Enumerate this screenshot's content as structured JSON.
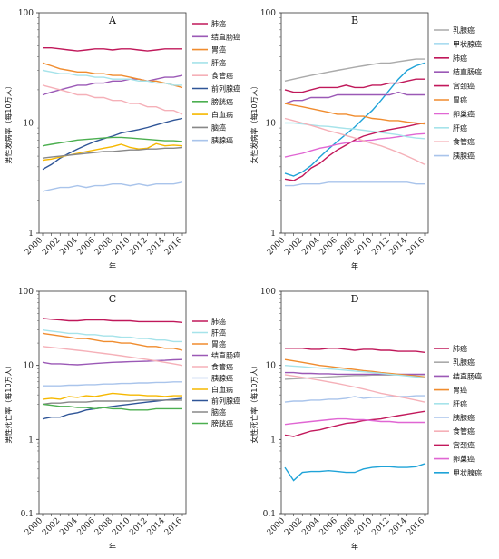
{
  "chart_data": [
    {
      "panel": "A",
      "type": "line",
      "title": "A",
      "xlabel": "年",
      "ylabel": "男性发病率（每10万人）",
      "yscale": "log",
      "ylim": [
        1,
        100
      ],
      "yticks": [
        "1",
        "10",
        "100"
      ],
      "x": [
        2000,
        2001,
        2002,
        2003,
        2004,
        2005,
        2006,
        2007,
        2008,
        2009,
        2010,
        2011,
        2012,
        2013,
        2014,
        2015,
        2016
      ],
      "xticks": [
        "2000",
        "2002",
        "2004",
        "2006",
        "2008",
        "2010",
        "2012",
        "2014",
        "2016"
      ],
      "series": [
        {
          "name": "肺癌",
          "color": "#c0185a",
          "values": [
            48,
            48,
            47,
            46,
            45,
            46,
            47,
            47,
            46,
            47,
            47,
            46,
            45,
            46,
            47,
            47,
            47
          ]
        },
        {
          "name": "结直肠癌",
          "color": "#9b59b6",
          "values": [
            18,
            19,
            20,
            21,
            22,
            22,
            23,
            23,
            24,
            24,
            25,
            25,
            24,
            25,
            26,
            26,
            27
          ]
        },
        {
          "name": "胃癌",
          "color": "#f08c2e",
          "values": [
            35,
            33,
            31,
            30,
            29,
            29,
            28,
            28,
            27,
            27,
            26,
            25,
            24,
            24,
            23,
            22,
            21
          ]
        },
        {
          "name": "肝癌",
          "color": "#a6e3ea",
          "values": [
            30,
            29,
            28,
            28,
            27,
            27,
            26,
            26,
            25,
            25,
            25,
            24,
            24,
            23,
            23,
            22,
            22
          ]
        },
        {
          "name": "食管癌",
          "color": "#f5b0b8",
          "values": [
            22,
            21,
            20,
            19,
            18,
            18,
            17,
            17,
            16,
            16,
            15,
            15,
            14,
            14,
            13,
            13,
            12
          ]
        },
        {
          "name": "前列腺癌",
          "color": "#2f5597",
          "values": [
            3.8,
            4.2,
            4.8,
            5.3,
            5.8,
            6.3,
            6.8,
            7.2,
            7.6,
            8.1,
            8.4,
            8.7,
            9.1,
            9.6,
            10.1,
            10.6,
            11.0
          ]
        },
        {
          "name": "膀胱癌",
          "color": "#4caf50",
          "values": [
            6.2,
            6.4,
            6.6,
            6.8,
            7.0,
            7.1,
            7.2,
            7.3,
            7.4,
            7.4,
            7.3,
            7.2,
            7.1,
            7.0,
            6.9,
            6.9,
            6.8
          ]
        },
        {
          "name": "白血病",
          "color": "#f6b800",
          "values": [
            4.6,
            4.7,
            4.9,
            5.1,
            5.3,
            5.5,
            5.7,
            5.9,
            6.1,
            6.4,
            6.0,
            5.8,
            5.9,
            6.5,
            6.2,
            6.3,
            6.2
          ]
        },
        {
          "name": "脑癌",
          "color": "#888888",
          "values": [
            4.8,
            4.9,
            5.0,
            5.1,
            5.2,
            5.3,
            5.4,
            5.5,
            5.5,
            5.6,
            5.7,
            5.7,
            5.8,
            5.8,
            5.9,
            5.9,
            6.0
          ]
        },
        {
          "name": "胰腺癌",
          "color": "#a9c4eb",
          "values": [
            2.4,
            2.5,
            2.6,
            2.6,
            2.7,
            2.6,
            2.7,
            2.7,
            2.8,
            2.8,
            2.7,
            2.8,
            2.7,
            2.8,
            2.8,
            2.8,
            2.9
          ]
        }
      ]
    },
    {
      "panel": "B",
      "type": "line",
      "title": "B",
      "xlabel": "年",
      "ylabel": "女性发病率（每10万人）",
      "yscale": "log",
      "ylim": [
        1,
        100
      ],
      "yticks": [
        "1",
        "10",
        "100"
      ],
      "x": [
        2000,
        2001,
        2002,
        2003,
        2004,
        2005,
        2006,
        2007,
        2008,
        2009,
        2010,
        2011,
        2012,
        2013,
        2014,
        2015,
        2016
      ],
      "xticks": [
        "2000",
        "2002",
        "2004",
        "2006",
        "2008",
        "2010",
        "2012",
        "2014",
        "2016"
      ],
      "series": [
        {
          "name": "乳腺癌",
          "color": "#aaaaaa",
          "values": [
            24,
            25,
            26,
            27,
            28,
            29,
            30,
            31,
            32,
            33,
            34,
            35,
            35,
            36,
            37,
            38,
            38
          ]
        },
        {
          "name": "甲状腺癌",
          "color": "#1fa3d8",
          "values": [
            3.5,
            3.3,
            3.6,
            4.1,
            4.9,
            5.8,
            6.8,
            7.9,
            9.2,
            11,
            13,
            16,
            20,
            25,
            30,
            33,
            35
          ]
        },
        {
          "name": "肺癌",
          "color": "#c0185a",
          "values": [
            20,
            19,
            19,
            20,
            21,
            21,
            21,
            22,
            21,
            21,
            22,
            22,
            23,
            23,
            24,
            25,
            25
          ]
        },
        {
          "name": "结直肠癌",
          "color": "#9b59b6",
          "values": [
            15,
            16,
            16,
            17,
            17,
            17,
            18,
            18,
            18,
            18,
            18,
            18,
            18,
            19,
            18,
            18,
            18
          ]
        },
        {
          "name": "宫颈癌",
          "color": "#c2185b",
          "values": [
            3.1,
            3.0,
            3.3,
            3.9,
            4.3,
            5.0,
            5.7,
            6.3,
            7.0,
            7.6,
            8.0,
            8.4,
            8.7,
            9.0,
            9.3,
            9.7,
            10.0
          ]
        },
        {
          "name": "胃癌",
          "color": "#f08c2e",
          "values": [
            15,
            14.5,
            14,
            13.5,
            13,
            12.5,
            12,
            12,
            11.5,
            11.5,
            11,
            10.8,
            10.5,
            10.5,
            10.2,
            10,
            9.8
          ]
        },
        {
          "name": "卵巢癌",
          "color": "#e066d3",
          "values": [
            4.9,
            5.1,
            5.3,
            5.6,
            5.9,
            6.1,
            6.4,
            6.6,
            6.8,
            6.9,
            7.0,
            7.2,
            7.3,
            7.5,
            7.7,
            7.9,
            8.0
          ]
        },
        {
          "name": "肝癌",
          "color": "#a6e3ea",
          "values": [
            10,
            10,
            9.8,
            9.6,
            9.4,
            9.3,
            9.1,
            8.9,
            8.8,
            8.6,
            8.4,
            8.2,
            8.0,
            7.8,
            7.5,
            7.3,
            7.2
          ]
        },
        {
          "name": "食管癌",
          "color": "#f5b0b8",
          "values": [
            11,
            10.5,
            10,
            9.5,
            9,
            8.5,
            8.1,
            7.7,
            7.3,
            6.9,
            6.5,
            6.2,
            5.8,
            5.4,
            5.0,
            4.6,
            4.2
          ]
        },
        {
          "name": "胰腺癌",
          "color": "#a9c4eb",
          "values": [
            2.7,
            2.7,
            2.8,
            2.8,
            2.8,
            2.9,
            2.9,
            2.9,
            2.9,
            2.9,
            2.9,
            2.9,
            2.9,
            2.9,
            2.9,
            2.8,
            2.8
          ]
        }
      ]
    },
    {
      "panel": "C",
      "type": "line",
      "title": "C",
      "xlabel": "年",
      "ylabel": "男性死亡率（每10万人）",
      "yscale": "log",
      "ylim": [
        0.1,
        100
      ],
      "yticks": [
        "0.1",
        "1",
        "10",
        "100"
      ],
      "x": [
        2000,
        2001,
        2002,
        2003,
        2004,
        2005,
        2006,
        2007,
        2008,
        2009,
        2010,
        2011,
        2012,
        2013,
        2014,
        2015,
        2016
      ],
      "xticks": [
        "2000",
        "2002",
        "2004",
        "2006",
        "2008",
        "2010",
        "2012",
        "2014",
        "2016"
      ],
      "series": [
        {
          "name": "肺癌",
          "color": "#c0185a",
          "values": [
            43,
            42,
            41,
            40,
            40,
            41,
            41,
            41,
            40,
            40,
            40,
            39,
            39,
            39,
            39,
            39,
            38
          ]
        },
        {
          "name": "肝癌",
          "color": "#a6e3ea",
          "values": [
            30,
            29,
            28,
            27,
            27,
            26,
            26,
            25,
            25,
            24,
            24,
            23,
            23,
            22,
            22,
            21,
            21
          ]
        },
        {
          "name": "胃癌",
          "color": "#f08c2e",
          "values": [
            27,
            26,
            25,
            24,
            23,
            23,
            22,
            21,
            21,
            20,
            20,
            19,
            18,
            18,
            17,
            17,
            16
          ]
        },
        {
          "name": "结直肠癌",
          "color": "#9b59b6",
          "values": [
            11,
            10.5,
            10.5,
            10.3,
            10.2,
            10.4,
            10.6,
            10.8,
            11,
            11.1,
            11.2,
            11.3,
            11.4,
            11.6,
            11.7,
            11.9,
            12
          ]
        },
        {
          "name": "食管癌",
          "color": "#f5b0b8",
          "values": [
            18,
            17.5,
            17,
            16.5,
            16,
            15.5,
            15,
            14.5,
            14,
            13.5,
            13,
            12.5,
            12,
            11.5,
            11,
            10.5,
            10
          ]
        },
        {
          "name": "胰腺癌",
          "color": "#a9c4eb",
          "values": [
            5.3,
            5.3,
            5.3,
            5.4,
            5.4,
            5.5,
            5.5,
            5.6,
            5.6,
            5.7,
            5.7,
            5.8,
            5.8,
            5.9,
            5.9,
            6.0,
            6.0
          ]
        },
        {
          "name": "白血病",
          "color": "#f6b800",
          "values": [
            3.5,
            3.6,
            3.5,
            3.8,
            3.7,
            3.9,
            3.8,
            4.0,
            4.2,
            4.1,
            4.0,
            4.0,
            3.9,
            3.9,
            3.8,
            3.9,
            3.9
          ]
        },
        {
          "name": "前列腺癌",
          "color": "#2f5597",
          "values": [
            1.9,
            2.0,
            2.0,
            2.2,
            2.3,
            2.5,
            2.6,
            2.7,
            2.8,
            2.9,
            3.0,
            3.1,
            3.2,
            3.3,
            3.4,
            3.5,
            3.6
          ]
        },
        {
          "name": "脑癌",
          "color": "#888888",
          "values": [
            3.0,
            3.1,
            3.1,
            3.2,
            3.2,
            3.2,
            3.3,
            3.3,
            3.3,
            3.3,
            3.3,
            3.4,
            3.4,
            3.4,
            3.4,
            3.4,
            3.4
          ]
        },
        {
          "name": "膀胱癌",
          "color": "#4caf50",
          "values": [
            3.0,
            2.9,
            2.8,
            2.8,
            2.7,
            2.7,
            2.6,
            2.7,
            2.6,
            2.6,
            2.5,
            2.5,
            2.5,
            2.6,
            2.6,
            2.6,
            2.6
          ]
        }
      ]
    },
    {
      "panel": "D",
      "type": "line",
      "title": "D",
      "xlabel": "年",
      "ylabel": "女性死亡率（每10万人）",
      "yscale": "log",
      "ylim": [
        0.1,
        100
      ],
      "yticks": [
        "0.1",
        "1",
        "10",
        "100"
      ],
      "x": [
        2000,
        2001,
        2002,
        2003,
        2004,
        2005,
        2006,
        2007,
        2008,
        2009,
        2010,
        2011,
        2012,
        2013,
        2014,
        2015,
        2016
      ],
      "xticks": [
        "2000",
        "2002",
        "2004",
        "2006",
        "2008",
        "2010",
        "2012",
        "2014",
        "2016"
      ],
      "series": [
        {
          "name": "肺癌",
          "color": "#c0185a",
          "values": [
            17,
            17,
            17,
            16.5,
            16.5,
            17,
            17,
            16.5,
            16,
            16.5,
            16.5,
            16,
            16,
            15.5,
            15.5,
            15.5,
            15
          ]
        },
        {
          "name": "乳腺癌",
          "color": "#aaaaaa",
          "values": [
            6.5,
            6.6,
            6.7,
            6.8,
            6.9,
            7.0,
            7.1,
            7.2,
            7.3,
            7.3,
            7.4,
            7.4,
            7.4,
            7.5,
            7.5,
            7.5,
            7.5
          ]
        },
        {
          "name": "结直肠癌",
          "color": "#9b59b6",
          "values": [
            8,
            8,
            7.8,
            7.8,
            7.7,
            7.7,
            7.6,
            7.6,
            7.6,
            7.6,
            7.6,
            7.6,
            7.6,
            7.6,
            7.6,
            7.6,
            7.6
          ]
        },
        {
          "name": "胃癌",
          "color": "#f08c2e",
          "values": [
            12,
            11.5,
            11,
            10.5,
            10,
            9.7,
            9.4,
            9.1,
            8.8,
            8.5,
            8.3,
            8.0,
            7.8,
            7.6,
            7.4,
            7.2,
            7.0
          ]
        },
        {
          "name": "肝癌",
          "color": "#a6e3ea",
          "values": [
            10,
            9.8,
            9.6,
            9.4,
            9.2,
            9.0,
            8.8,
            8.6,
            8.4,
            8.2,
            8.0,
            7.8,
            7.6,
            7.4,
            7.2,
            7.0,
            6.8
          ]
        },
        {
          "name": "胰腺癌",
          "color": "#a9c4eb",
          "values": [
            3.2,
            3.3,
            3.3,
            3.4,
            3.4,
            3.5,
            3.5,
            3.6,
            3.8,
            3.6,
            3.7,
            3.7,
            3.8,
            3.8,
            3.8,
            3.9,
            3.9
          ]
        },
        {
          "name": "食管癌",
          "color": "#f5b0b8",
          "values": [
            7.5,
            7.2,
            6.9,
            6.6,
            6.3,
            6.0,
            5.7,
            5.4,
            5.1,
            4.8,
            4.5,
            4.2,
            4.0,
            3.8,
            3.6,
            3.4,
            3.2
          ]
        },
        {
          "name": "宫颈癌",
          "color": "#c2185b",
          "values": [
            1.15,
            1.1,
            1.2,
            1.3,
            1.35,
            1.45,
            1.55,
            1.65,
            1.7,
            1.8,
            1.85,
            1.9,
            2.0,
            2.1,
            2.2,
            2.3,
            2.4
          ]
        },
        {
          "name": "卵巢癌",
          "color": "#e066d3",
          "values": [
            1.6,
            1.65,
            1.7,
            1.75,
            1.8,
            1.85,
            1.9,
            1.9,
            1.85,
            1.85,
            1.8,
            1.75,
            1.75,
            1.7,
            1.7,
            1.7,
            1.7
          ]
        },
        {
          "name": "甲状腺癌",
          "color": "#1fa3d8",
          "values": [
            0.42,
            0.28,
            0.36,
            0.37,
            0.37,
            0.38,
            0.37,
            0.36,
            0.36,
            0.4,
            0.42,
            0.43,
            0.43,
            0.42,
            0.42,
            0.43,
            0.47
          ]
        }
      ]
    }
  ]
}
